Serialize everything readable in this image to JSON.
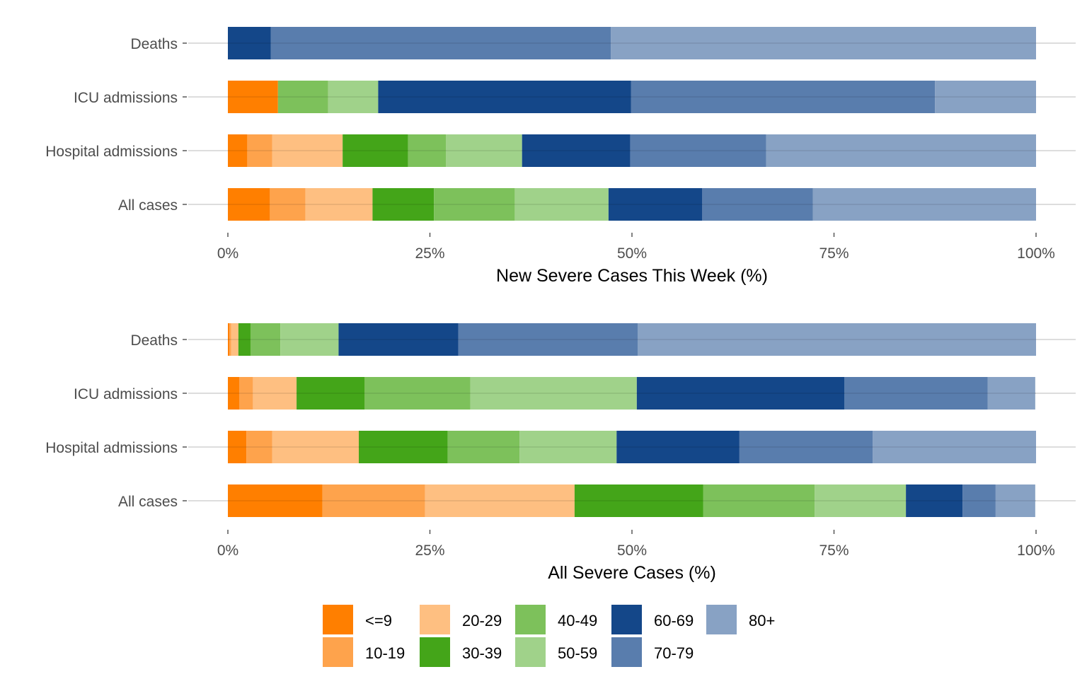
{
  "chart_data": [
    {
      "type": "bar",
      "orientation": "horizontal",
      "stacked": true,
      "title": "",
      "xlabel": "New Severe Cases This Week (%)",
      "ylabel": "",
      "xlim": [
        0,
        100
      ],
      "xticks": [
        "0%",
        "25%",
        "50%",
        "75%",
        "100%"
      ],
      "xtick_values": [
        0,
        25,
        50,
        75,
        100
      ],
      "grid": "horizontal-major",
      "categories": [
        "Deaths",
        "ICU admissions",
        "Hospital admissions",
        "All cases"
      ],
      "series": [
        {
          "name": "<=9",
          "values": [
            0,
            6.2,
            2.4,
            5.2
          ]
        },
        {
          "name": "10-19",
          "values": [
            0,
            0,
            3.1,
            4.4
          ]
        },
        {
          "name": "20-29",
          "values": [
            0,
            0,
            8.7,
            8.3
          ]
        },
        {
          "name": "30-39",
          "values": [
            0,
            0,
            8.1,
            7.6
          ]
        },
        {
          "name": "40-49",
          "values": [
            0,
            6.2,
            4.7,
            10.0
          ]
        },
        {
          "name": "50-59",
          "values": [
            0,
            6.2,
            9.4,
            11.6
          ]
        },
        {
          "name": "60-69",
          "values": [
            5.3,
            31.3,
            13.4,
            11.6
          ]
        },
        {
          "name": "70-79",
          "values": [
            42.1,
            37.6,
            16.8,
            13.7
          ]
        },
        {
          "name": "80+",
          "values": [
            52.6,
            12.5,
            33.4,
            27.6
          ]
        }
      ]
    },
    {
      "type": "bar",
      "orientation": "horizontal",
      "stacked": true,
      "title": "",
      "xlabel": "All Severe Cases (%)",
      "ylabel": "",
      "xlim": [
        0,
        100
      ],
      "xticks": [
        "0%",
        "25%",
        "50%",
        "75%",
        "100%"
      ],
      "xtick_values": [
        0,
        25,
        50,
        75,
        100
      ],
      "grid": "horizontal-major",
      "categories": [
        "Deaths",
        "ICU admissions",
        "Hospital admissions",
        "All cases"
      ],
      "series": [
        {
          "name": "<=9",
          "values": [
            0.2,
            1.4,
            2.3,
            11.7
          ]
        },
        {
          "name": "10-19",
          "values": [
            0.2,
            1.7,
            3.2,
            12.7
          ]
        },
        {
          "name": "20-29",
          "values": [
            0.9,
            5.4,
            10.7,
            18.5
          ]
        },
        {
          "name": "30-39",
          "values": [
            1.5,
            8.4,
            11.0,
            15.9
          ]
        },
        {
          "name": "40-49",
          "values": [
            3.7,
            13.1,
            8.9,
            13.8
          ]
        },
        {
          "name": "50-59",
          "values": [
            7.2,
            20.6,
            12.0,
            11.3
          ]
        },
        {
          "name": "60-69",
          "values": [
            14.8,
            25.7,
            15.2,
            7.0
          ]
        },
        {
          "name": "70-79",
          "values": [
            22.2,
            17.7,
            16.5,
            4.1
          ]
        },
        {
          "name": "80+",
          "values": [
            49.3,
            5.9,
            20.2,
            4.9
          ]
        }
      ]
    }
  ],
  "legend": {
    "placement": "bottom",
    "items": [
      {
        "label": "<=9",
        "color": "#ff7f00"
      },
      {
        "label": "10-19",
        "color": "#fea34c"
      },
      {
        "label": "20-29",
        "color": "#febf81"
      },
      {
        "label": "30-39",
        "color": "#44a519"
      },
      {
        "label": "40-49",
        "color": "#7dc15b"
      },
      {
        "label": "50-59",
        "color": "#a0d28a"
      },
      {
        "label": "60-69",
        "color": "#144789"
      },
      {
        "label": "70-79",
        "color": "#597dad"
      },
      {
        "label": "80+",
        "color": "#88a2c4"
      }
    ]
  }
}
